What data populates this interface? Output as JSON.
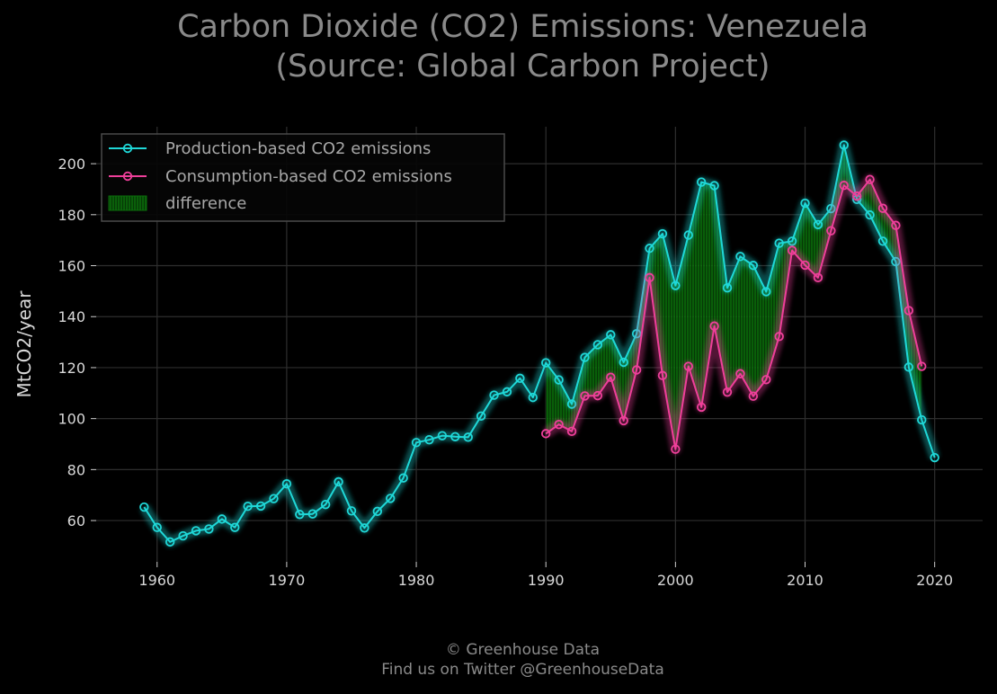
{
  "chart_data": {
    "type": "line",
    "title_line1": "Carbon Dioxide (CO2) Emissions: Venezuela",
    "title_line2": "(Source: Global Carbon Project)",
    "xlabel": "",
    "ylabel": "MtCO2/year",
    "xlim": [
      1955.3,
      2023.7
    ],
    "ylim": [
      43.8,
      214.5
    ],
    "xticks": [
      1960,
      1970,
      1980,
      1990,
      2000,
      2010,
      2020
    ],
    "yticks": [
      60,
      80,
      100,
      120,
      140,
      160,
      180,
      200
    ],
    "grid": true,
    "legend_position": "top-left",
    "legend": [
      "Production-based CO2 emissions",
      "Consumption-based CO2 emissions",
      "difference"
    ],
    "series": [
      {
        "name": "Production-based CO2 emissions",
        "color": "#1fd8d8",
        "x": [
          1959,
          1960,
          1961,
          1962,
          1963,
          1964,
          1965,
          1966,
          1967,
          1968,
          1969,
          1970,
          1971,
          1972,
          1973,
          1974,
          1975,
          1976,
          1977,
          1978,
          1979,
          1980,
          1981,
          1982,
          1983,
          1984,
          1985,
          1986,
          1987,
          1988,
          1989,
          1990,
          1991,
          1992,
          1993,
          1994,
          1995,
          1996,
          1997,
          1998,
          1999,
          2000,
          2001,
          2002,
          2003,
          2004,
          2005,
          2006,
          2007,
          2008,
          2009,
          2010,
          2011,
          2012,
          2013,
          2014,
          2015,
          2016,
          2017,
          2018,
          2019,
          2020
        ],
        "y": [
          65.3,
          57.3,
          51.6,
          54.0,
          56.0,
          56.7,
          60.6,
          57.3,
          65.6,
          65.7,
          68.6,
          74.4,
          62.4,
          62.6,
          66.3,
          75.2,
          63.8,
          57.1,
          63.6,
          68.7,
          76.7,
          90.6,
          91.7,
          93.3,
          92.9,
          92.7,
          101.0,
          109.2,
          110.5,
          115.8,
          108.3,
          121.9,
          115.2,
          105.7,
          124.0,
          129.0,
          132.9,
          122.1,
          133.3,
          166.8,
          172.5,
          152.2,
          172.0,
          192.8,
          191.4,
          151.3,
          163.6,
          160.1,
          149.8,
          168.8,
          169.6,
          184.5,
          176.1,
          182.4,
          207.3,
          186.0,
          179.9,
          169.6,
          161.6,
          120.2,
          99.5,
          84.7
        ]
      },
      {
        "name": "Consumption-based CO2 emissions",
        "color": "#ef3f9a",
        "x": [
          1990,
          1991,
          1992,
          1993,
          1994,
          1995,
          1996,
          1997,
          1998,
          1999,
          2000,
          2001,
          2002,
          2003,
          2004,
          2005,
          2006,
          2007,
          2008,
          2009,
          2010,
          2011,
          2012,
          2013,
          2014,
          2015,
          2016,
          2017,
          2018,
          2019
        ],
        "y": [
          94.1,
          97.7,
          95.0,
          108.9,
          109.0,
          116.2,
          99.2,
          119.1,
          155.3,
          116.9,
          88.0,
          120.5,
          104.5,
          136.3,
          110.4,
          117.6,
          108.8,
          115.3,
          132.2,
          166.0,
          160.2,
          155.3,
          173.7,
          191.5,
          187.3,
          193.8,
          182.5,
          175.8,
          142.4,
          120.5
        ]
      }
    ],
    "difference_color": "#0b8a0b"
  },
  "credits": {
    "line1": "© Greenhouse Data",
    "line2": "Find us on Twitter @GreenhouseData"
  }
}
